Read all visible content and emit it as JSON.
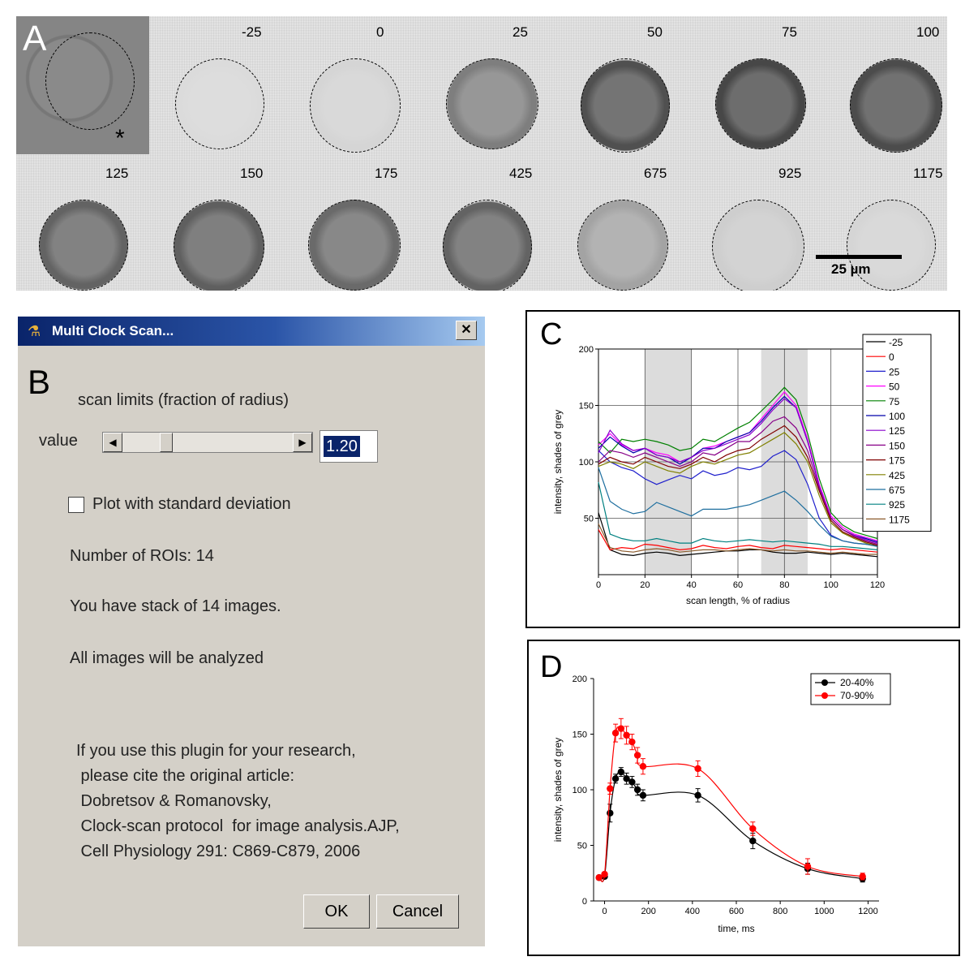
{
  "panel_a": {
    "label": "A",
    "asterisk": "*",
    "time_labels": [
      "-25",
      "0",
      "25",
      "50",
      "75",
      "100",
      "125",
      "150",
      "175",
      "425",
      "675",
      "925",
      "1175"
    ],
    "scale_label": "25 µm"
  },
  "panel_b": {
    "label": "B",
    "window_title": "Multi Clock Scan...",
    "close_glyph": "✕",
    "scan_limits_label": "scan limits (fraction of radius)",
    "value_label": "value",
    "value": "1.20",
    "checkbox_label": "Plot with standard deviation",
    "roi_text": "Number of ROIs: 14",
    "stack_text": "You have stack of 14 images.",
    "analyzed_text": "All images will be analyzed",
    "citation_lines": [
      "If you use this plugin for your research,",
      " please cite the original article:",
      " Dobretsov & Romanovsky,",
      " Clock-scan protocol  for image analysis.AJP,",
      " Cell Physiology 291: C869-C879, 2006"
    ],
    "ok_label": "OK",
    "cancel_label": "Cancel"
  },
  "chart_data": [
    {
      "panel_label": "C",
      "type": "line",
      "xlabel": "scan length, % of radius",
      "ylabel": "intensity, shades of grey",
      "xlim": [
        0,
        120
      ],
      "ylim": [
        0,
        200
      ],
      "xticks": [
        0,
        20,
        40,
        60,
        80,
        100,
        120
      ],
      "yticks": [
        50,
        100,
        150,
        200
      ],
      "shaded_ranges": [
        [
          20,
          40
        ],
        [
          70,
          90
        ]
      ],
      "grid": true,
      "legend_position": "top-right",
      "x": [
        0,
        5,
        10,
        15,
        20,
        25,
        30,
        35,
        40,
        45,
        50,
        55,
        60,
        65,
        70,
        75,
        80,
        85,
        90,
        95,
        100,
        105,
        110,
        115,
        120
      ],
      "series": [
        {
          "name": "-25",
          "color": "#000000",
          "values": [
            55,
            22,
            18,
            17,
            19,
            20,
            19,
            17,
            18,
            19,
            20,
            21,
            21,
            22,
            22,
            20,
            19,
            19,
            20,
            19,
            18,
            19,
            18,
            17,
            16
          ]
        },
        {
          "name": "0",
          "color": "#ff0000",
          "values": [
            40,
            22,
            24,
            23,
            27,
            26,
            24,
            22,
            23,
            26,
            24,
            23,
            25,
            26,
            24,
            23,
            26,
            25,
            24,
            23,
            22,
            23,
            22,
            21,
            20
          ]
        },
        {
          "name": "25",
          "color": "#1f1fcc",
          "values": [
            110,
            100,
            95,
            92,
            85,
            80,
            84,
            88,
            85,
            92,
            88,
            90,
            95,
            93,
            96,
            105,
            110,
            102,
            80,
            50,
            35,
            30,
            28,
            27,
            26
          ]
        },
        {
          "name": "50",
          "color": "#ff00ff",
          "values": [
            115,
            125,
            115,
            110,
            112,
            108,
            106,
            100,
            104,
            112,
            114,
            118,
            122,
            126,
            138,
            150,
            162,
            150,
            120,
            80,
            52,
            42,
            36,
            33,
            30
          ]
        },
        {
          "name": "75",
          "color": "#008000",
          "values": [
            118,
            108,
            120,
            118,
            120,
            118,
            115,
            110,
            112,
            120,
            118,
            124,
            130,
            135,
            145,
            155,
            166,
            155,
            125,
            85,
            55,
            44,
            38,
            35,
            32
          ]
        },
        {
          "name": "100",
          "color": "#0000aa",
          "values": [
            112,
            122,
            114,
            108,
            112,
            106,
            104,
            98,
            104,
            112,
            112,
            118,
            122,
            126,
            136,
            148,
            158,
            148,
            118,
            78,
            50,
            40,
            35,
            32,
            29
          ]
        },
        {
          "name": "125",
          "color": "#8800cc",
          "values": [
            108,
            128,
            116,
            110,
            112,
            106,
            104,
            100,
            104,
            110,
            112,
            116,
            120,
            124,
            134,
            146,
            156,
            148,
            118,
            78,
            50,
            40,
            35,
            31,
            28
          ]
        },
        {
          "name": "150",
          "color": "#880088",
          "values": [
            100,
            110,
            108,
            104,
            108,
            104,
            100,
            96,
            100,
            108,
            106,
            112,
            118,
            118,
            126,
            136,
            140,
            130,
            110,
            76,
            50,
            40,
            34,
            30,
            27
          ]
        },
        {
          "name": "175",
          "color": "#800000",
          "values": [
            98,
            104,
            100,
            98,
            104,
            100,
            96,
            94,
            98,
            104,
            100,
            106,
            110,
            112,
            120,
            126,
            132,
            122,
            104,
            74,
            48,
            38,
            33,
            29,
            26
          ]
        },
        {
          "name": "425",
          "color": "#808000",
          "values": [
            96,
            100,
            98,
            94,
            100,
            96,
            92,
            90,
            96,
            100,
            98,
            102,
            106,
            108,
            114,
            120,
            126,
            116,
            100,
            70,
            46,
            37,
            32,
            28,
            25
          ]
        },
        {
          "name": "675",
          "color": "#1f6f9f",
          "values": [
            95,
            65,
            58,
            54,
            56,
            64,
            60,
            56,
            52,
            58,
            58,
            58,
            60,
            62,
            66,
            70,
            74,
            66,
            56,
            44,
            34,
            30,
            28,
            27,
            25
          ]
        },
        {
          "name": "925",
          "color": "#008080",
          "values": [
            82,
            36,
            32,
            30,
            30,
            32,
            30,
            28,
            28,
            32,
            30,
            29,
            30,
            31,
            30,
            29,
            30,
            29,
            28,
            27,
            25,
            25,
            24,
            23,
            22
          ]
        },
        {
          "name": "1175",
          "color": "#8b5a2b",
          "values": [
            45,
            24,
            21,
            20,
            22,
            23,
            22,
            20,
            21,
            22,
            22,
            21,
            22,
            23,
            22,
            21,
            22,
            21,
            21,
            20,
            19,
            20,
            19,
            18,
            18
          ]
        }
      ]
    },
    {
      "panel_label": "D",
      "type": "scatter",
      "xlabel": "time, ms",
      "ylabel": "intensity, shades of grey",
      "xlim": [
        -50,
        1250
      ],
      "ylim": [
        0,
        200
      ],
      "xticks": [
        0,
        200,
        400,
        600,
        800,
        1000,
        1200
      ],
      "yticks": [
        0,
        50,
        100,
        150,
        200
      ],
      "legend_position": "top-right",
      "fit_curves": true,
      "x": [
        -25,
        0,
        25,
        50,
        75,
        100,
        125,
        150,
        175,
        425,
        675,
        925,
        1175
      ],
      "series": [
        {
          "name": "20-40%",
          "color": "#000000",
          "values": [
            21,
            22,
            79,
            110,
            116,
            110,
            107,
            100,
            95,
            95,
            54,
            29,
            20
          ],
          "errors": [
            2,
            2,
            8,
            4,
            4,
            5,
            5,
            5,
            5,
            6,
            7,
            5,
            3
          ]
        },
        {
          "name": "70-90%",
          "color": "#ff0000",
          "values": [
            21,
            24,
            101,
            151,
            155,
            149,
            143,
            131,
            121,
            119,
            65,
            31,
            22
          ],
          "errors": [
            2,
            2,
            5,
            8,
            9,
            8,
            7,
            7,
            7,
            7,
            6,
            7,
            3
          ]
        }
      ]
    }
  ]
}
